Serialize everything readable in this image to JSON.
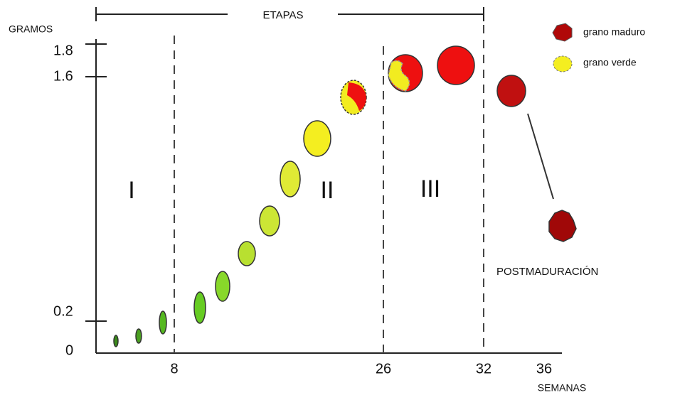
{
  "header": {
    "stages_title": "ETAPAS",
    "y_axis_title": "GRAMOS",
    "x_axis_title": "SEMANAS"
  },
  "y_ticks": [
    "1.8",
    "1.6",
    "0.2",
    "0"
  ],
  "x_ticks": [
    "8",
    "26",
    "32",
    "36"
  ],
  "stages": [
    "I",
    "II",
    "III"
  ],
  "annotation": "POSTMADURACIÓN",
  "legend": [
    "grano maduro",
    "grano verde"
  ]
}
